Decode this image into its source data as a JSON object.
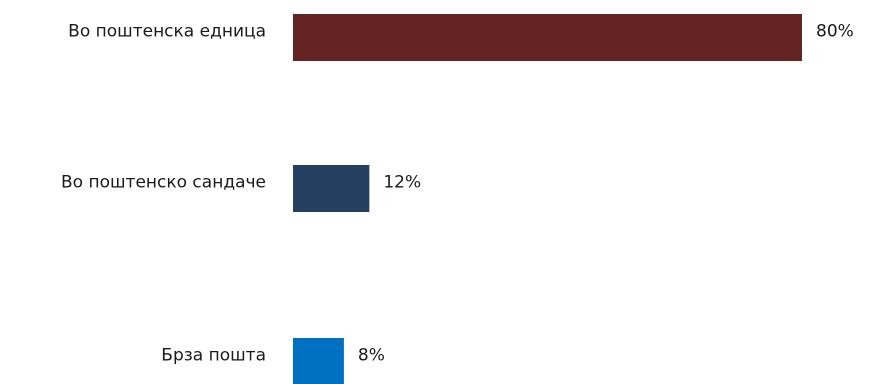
{
  "chart_data": {
    "type": "bar",
    "orientation": "horizontal",
    "categories": [
      "Во поштенска едница",
      "Во поштенско сандаче",
      "Брза пошта"
    ],
    "values": [
      80,
      12,
      8
    ],
    "value_labels": [
      "80%",
      "12%",
      "8%"
    ],
    "colors": [
      "#632423",
      "#243F60",
      "#0070C0"
    ],
    "xlim": [
      0,
      80
    ],
    "grid": false,
    "legend": "none",
    "title": "",
    "xlabel": "",
    "ylabel": ""
  }
}
